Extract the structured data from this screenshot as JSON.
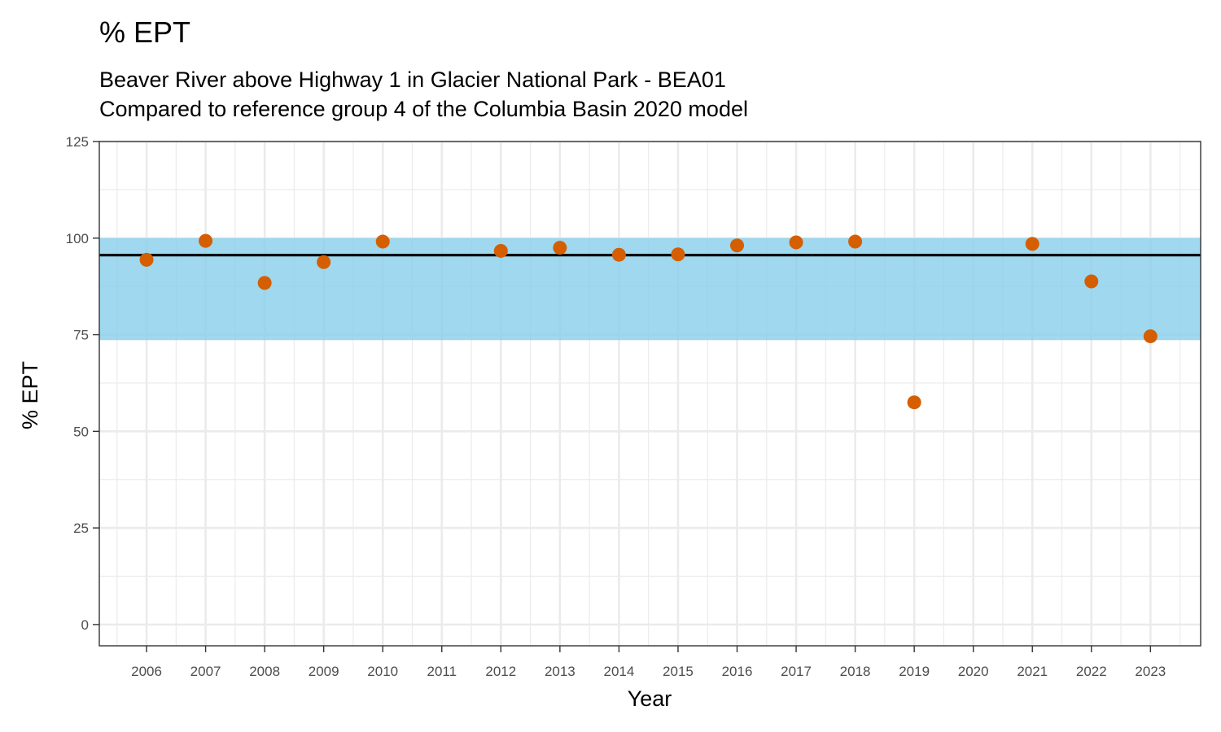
{
  "chart_data": {
    "type": "scatter",
    "title": "% EPT",
    "subtitle_lines": [
      "Beaver River above Highway 1 in Glacier National Park - BEA01",
      "Compared to reference group 4 of the Columbia Basin 2020 model"
    ],
    "xlabel": "Year",
    "ylabel": "% EPT",
    "xlim": [
      2005.2,
      2023.85
    ],
    "ylim": [
      -5.5,
      125
    ],
    "x_ticks": [
      2006,
      2007,
      2008,
      2009,
      2010,
      2011,
      2012,
      2013,
      2014,
      2015,
      2016,
      2017,
      2018,
      2019,
      2020,
      2021,
      2022,
      2023
    ],
    "y_ticks": [
      0,
      25,
      50,
      75,
      100,
      125
    ],
    "grid": true,
    "reference_band": {
      "low": 73.6,
      "high": 100,
      "color": "#87CEEB"
    },
    "reference_line": {
      "y": 95.6,
      "color": "#000000"
    },
    "point_color": "#D55E00",
    "points": [
      {
        "x": 2006,
        "y": 94.4
      },
      {
        "x": 2007,
        "y": 99.3
      },
      {
        "x": 2008,
        "y": 88.4
      },
      {
        "x": 2009,
        "y": 93.8
      },
      {
        "x": 2010,
        "y": 99.1
      },
      {
        "x": 2012,
        "y": 96.7
      },
      {
        "x": 2013,
        "y": 97.5
      },
      {
        "x": 2014,
        "y": 95.7
      },
      {
        "x": 2015,
        "y": 95.8
      },
      {
        "x": 2016,
        "y": 98.1
      },
      {
        "x": 2017,
        "y": 98.9
      },
      {
        "x": 2018,
        "y": 99.1
      },
      {
        "x": 2019,
        "y": 57.5
      },
      {
        "x": 2021,
        "y": 98.5
      },
      {
        "x": 2022,
        "y": 88.8
      },
      {
        "x": 2023,
        "y": 74.6
      }
    ]
  }
}
